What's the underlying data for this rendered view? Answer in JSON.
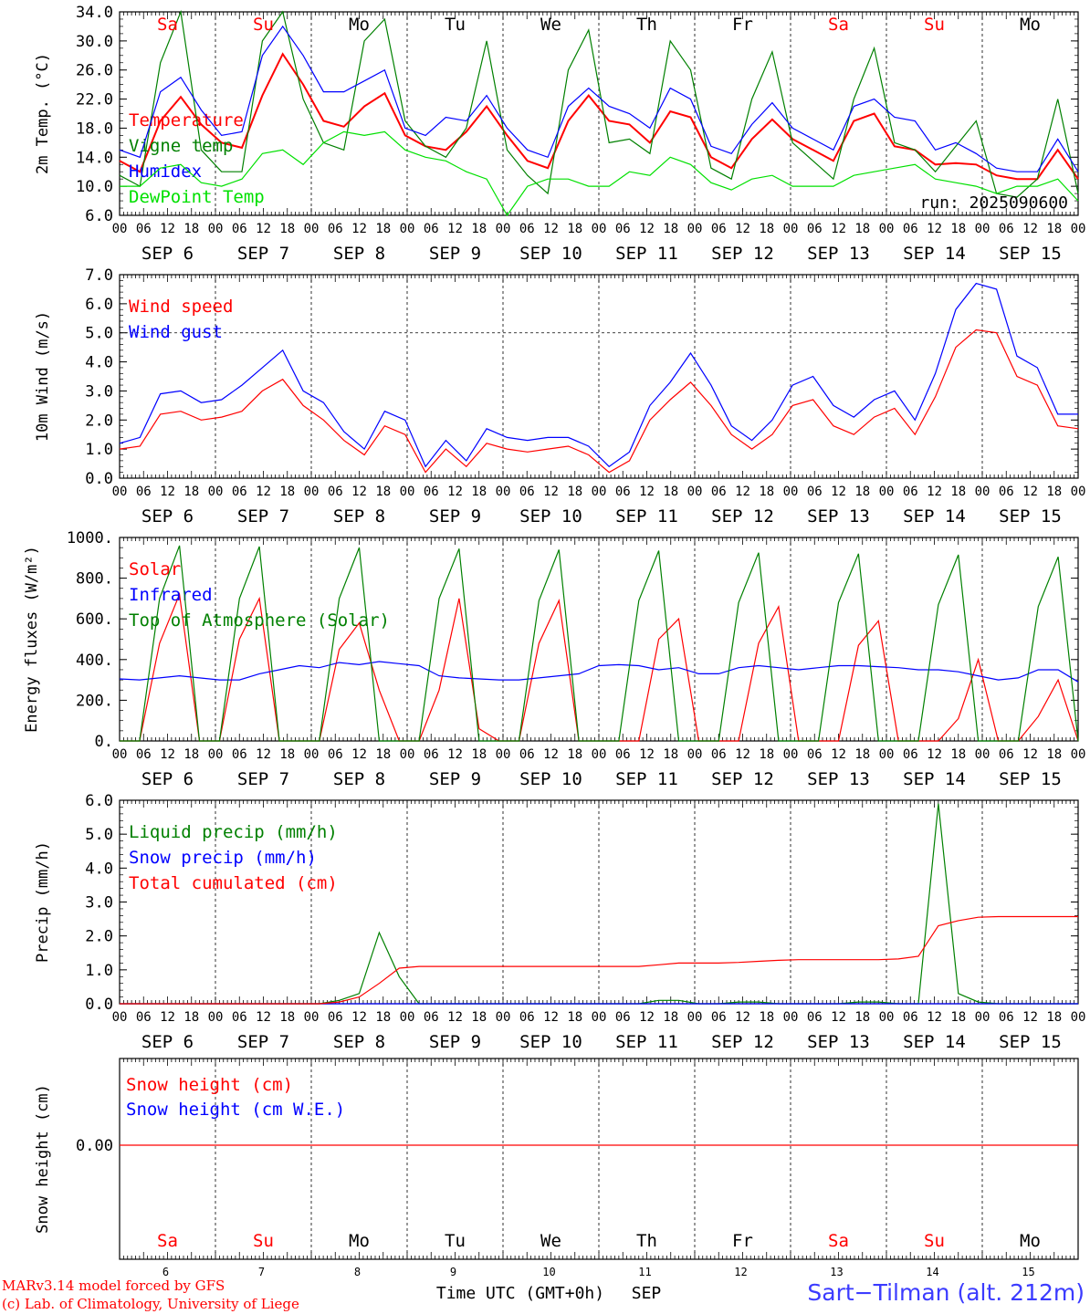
{
  "chart_data": [
    {
      "type": "line",
      "ylabel": "2m Temp. (°C)",
      "ylim": [
        6,
        34
      ],
      "yticks": [
        "6.0",
        "10.0",
        "14.0",
        "18.0",
        "22.0",
        "26.0",
        "30.0",
        "34.0"
      ],
      "x_start": "2025-09-06 00 UTC",
      "x_step_hours": 6,
      "weekdays": [
        "Sa",
        "Su",
        "Mo",
        "Tu",
        "We",
        "Th",
        "Fr",
        "Sa",
        "Su",
        "Mo"
      ],
      "annotation": "run: 2025090600",
      "series": [
        {
          "name": "Temperature",
          "color": "#ff0000",
          "values": [
            13.5,
            12.0,
            19.0,
            22.3,
            18.5,
            16.0,
            15.3,
            22.5,
            28.2,
            24.0,
            19.0,
            18.2,
            21.0,
            22.8,
            17.0,
            15.5,
            15.0,
            17.5,
            21.0,
            17.0,
            13.5,
            12.5,
            19.0,
            22.5,
            19.0,
            18.5,
            16.0,
            20.3,
            19.5,
            14.0,
            12.5,
            16.5,
            19.2,
            16.5,
            15.0,
            13.5,
            19.0,
            20.0,
            15.5,
            15.0,
            13.0,
            13.2,
            13.0,
            11.5,
            11.0,
            11.0,
            15.0,
            11.0
          ]
        },
        {
          "name": "Vigne temp",
          "color": "#008000",
          "values": [
            11.5,
            10.0,
            27.0,
            34.0,
            15.0,
            12.0,
            12.0,
            30.0,
            34.0,
            22.0,
            16.0,
            15.0,
            30.0,
            33.0,
            19.0,
            15.5,
            14.0,
            18.0,
            30.0,
            15.0,
            11.5,
            9.0,
            26.0,
            31.5,
            16.0,
            16.5,
            14.5,
            30.0,
            26.0,
            12.5,
            11.0,
            22.0,
            28.5,
            16.0,
            13.5,
            11.0,
            22.0,
            29.0,
            16.0,
            15.0,
            12.0,
            15.5,
            19.0,
            9.0,
            8.5,
            11.0,
            22.0,
            9.0
          ]
        },
        {
          "name": "Humidex",
          "color": "#0000ff",
          "values": [
            15.0,
            14.0,
            23.0,
            25.0,
            20.5,
            17.0,
            17.5,
            28.0,
            32.0,
            28.0,
            23.0,
            23.0,
            24.5,
            26.0,
            18.0,
            17.0,
            19.5,
            19.0,
            22.5,
            18.0,
            15.0,
            14.0,
            21.0,
            23.5,
            21.0,
            20.0,
            18.0,
            23.5,
            22.0,
            15.5,
            14.5,
            18.5,
            21.5,
            18.0,
            16.5,
            15.0,
            21.0,
            22.0,
            19.5,
            19.0,
            15.0,
            16.0,
            14.5,
            12.5,
            12.0,
            12.0,
            16.5,
            12.0
          ]
        },
        {
          "name": "DewPoint Temp",
          "color": "#00e000",
          "values": [
            10.0,
            10.0,
            12.5,
            13.0,
            10.5,
            10.0,
            11.0,
            14.5,
            15.0,
            13.0,
            16.0,
            17.5,
            17.0,
            17.5,
            15.0,
            14.0,
            13.5,
            12.0,
            11.0,
            6.0,
            10.0,
            11.0,
            11.0,
            10.0,
            10.0,
            12.0,
            11.5,
            14.0,
            13.0,
            10.5,
            9.5,
            11.0,
            11.5,
            10.0,
            10.0,
            10.0,
            11.5,
            12.0,
            12.5,
            13.0,
            11.0,
            10.5,
            10.0,
            9.0,
            10.0,
            10.0,
            11.0,
            8.0
          ]
        }
      ]
    },
    {
      "type": "line",
      "ylabel": "10m Wind (m/s)",
      "ylim": [
        0,
        7
      ],
      "yticks": [
        "0.0",
        "1.0",
        "2.0",
        "3.0",
        "4.0",
        "5.0",
        "6.0",
        "7.0"
      ],
      "reference_line": 5.0,
      "series": [
        {
          "name": "Wind speed",
          "color": "#ff0000",
          "values": [
            1.0,
            1.1,
            2.2,
            2.3,
            2.0,
            2.1,
            2.3,
            3.0,
            3.4,
            2.5,
            2.0,
            1.3,
            0.8,
            1.8,
            1.5,
            0.2,
            1.0,
            0.4,
            1.2,
            1.0,
            0.9,
            1.0,
            1.1,
            0.8,
            0.2,
            0.6,
            2.0,
            2.7,
            3.3,
            2.5,
            1.5,
            1.0,
            1.5,
            2.5,
            2.7,
            1.8,
            1.5,
            2.1,
            2.4,
            1.5,
            2.8,
            4.5,
            5.1,
            5.0,
            3.5,
            3.2,
            1.8,
            1.7
          ]
        },
        {
          "name": "Wind gust",
          "color": "#0000ff",
          "values": [
            1.2,
            1.4,
            2.9,
            3.0,
            2.6,
            2.7,
            3.2,
            3.8,
            4.4,
            3.0,
            2.6,
            1.6,
            1.0,
            2.3,
            2.0,
            0.4,
            1.3,
            0.6,
            1.7,
            1.4,
            1.3,
            1.4,
            1.4,
            1.1,
            0.4,
            0.9,
            2.5,
            3.3,
            4.3,
            3.2,
            1.8,
            1.3,
            2.0,
            3.2,
            3.5,
            2.5,
            2.1,
            2.7,
            3.0,
            2.0,
            3.6,
            5.8,
            6.7,
            6.5,
            4.2,
            3.8,
            2.2,
            2.2
          ]
        }
      ]
    },
    {
      "type": "line",
      "ylabel": "Energy fluxes (W/m²)",
      "ylim": [
        0,
        1000
      ],
      "yticks": [
        "0.",
        "200.",
        "400.",
        "600.",
        "800.",
        "1000."
      ],
      "series": [
        {
          "name": "Solar",
          "color": "#ff0000",
          "values": [
            0,
            0,
            480,
            720,
            0,
            0,
            500,
            700,
            0,
            0,
            0,
            450,
            580,
            250,
            0,
            0,
            250,
            700,
            60,
            0,
            0,
            480,
            690,
            0,
            0,
            0,
            0,
            500,
            600,
            0,
            0,
            0,
            480,
            660,
            0,
            0,
            0,
            470,
            590,
            0,
            0,
            0,
            110,
            400,
            0,
            0,
            120,
            300,
            0
          ]
        },
        {
          "name": "Infrared",
          "color": "#0000ff",
          "values": [
            305,
            300,
            310,
            320,
            310,
            300,
            300,
            330,
            350,
            370,
            360,
            385,
            375,
            390,
            380,
            370,
            320,
            310,
            305,
            300,
            300,
            310,
            320,
            330,
            370,
            375,
            370,
            350,
            360,
            330,
            330,
            360,
            370,
            360,
            350,
            360,
            370,
            370,
            365,
            360,
            350,
            350,
            340,
            320,
            300,
            310,
            350,
            350,
            290
          ]
        },
        {
          "name": "Top of Atmosphere (Solar)",
          "color": "#008000",
          "values": [
            0,
            0,
            700,
            960,
            0,
            0,
            700,
            955,
            0,
            0,
            0,
            700,
            950,
            0,
            0,
            0,
            700,
            945,
            0,
            0,
            0,
            690,
            940,
            0,
            0,
            0,
            690,
            935,
            0,
            0,
            0,
            680,
            925,
            0,
            0,
            0,
            680,
            920,
            0,
            0,
            0,
            670,
            915,
            0,
            0,
            0,
            660,
            905,
            0
          ]
        }
      ]
    },
    {
      "type": "line",
      "ylabel": "Precip (mm/h)",
      "ylim": [
        0,
        6
      ],
      "yticks": [
        "0.0",
        "1.0",
        "2.0",
        "3.0",
        "4.0",
        "5.0",
        "6.0"
      ],
      "series": [
        {
          "name": "Liquid precip (mm/h)",
          "color": "#008000",
          "values": [
            0,
            0,
            0,
            0,
            0,
            0,
            0,
            0,
            0,
            0,
            0,
            0.1,
            0.3,
            2.1,
            0.8,
            0,
            0,
            0,
            0,
            0,
            0,
            0,
            0,
            0,
            0,
            0,
            0,
            0.1,
            0.1,
            0,
            0,
            0.05,
            0.05,
            0,
            0,
            0,
            0,
            0.05,
            0.05,
            0,
            0,
            5.9,
            0.3,
            0.05,
            0,
            0,
            0,
            0,
            0
          ]
        },
        {
          "name": "Snow precip (mm/h)",
          "color": "#0000ff",
          "values": [
            0,
            0,
            0,
            0,
            0,
            0,
            0,
            0,
            0,
            0,
            0,
            0,
            0,
            0,
            0,
            0,
            0,
            0,
            0,
            0,
            0,
            0,
            0,
            0,
            0,
            0,
            0,
            0,
            0,
            0,
            0,
            0,
            0,
            0,
            0,
            0,
            0,
            0,
            0,
            0,
            0,
            0,
            0,
            0,
            0,
            0,
            0,
            0,
            0
          ]
        },
        {
          "name": "Total cumulated (cm)",
          "color": "#ff0000",
          "values": [
            0,
            0,
            0,
            0,
            0,
            0,
            0,
            0,
            0,
            0,
            0,
            0.05,
            0.2,
            0.6,
            1.05,
            1.1,
            1.1,
            1.1,
            1.1,
            1.1,
            1.1,
            1.1,
            1.1,
            1.1,
            1.1,
            1.1,
            1.1,
            1.15,
            1.2,
            1.2,
            1.2,
            1.22,
            1.25,
            1.28,
            1.3,
            1.3,
            1.3,
            1.3,
            1.3,
            1.32,
            1.4,
            2.3,
            2.45,
            2.55,
            2.57,
            2.57,
            2.57,
            2.57,
            2.57
          ]
        }
      ]
    },
    {
      "type": "line",
      "ylabel": "Snow height (cm)",
      "yticks": [
        "0.00"
      ],
      "series": [
        {
          "name": "Snow height (cm)",
          "color": "#ff0000",
          "values": [
            0,
            0,
            0,
            0,
            0,
            0,
            0,
            0,
            0,
            0,
            0,
            0,
            0,
            0,
            0,
            0,
            0,
            0,
            0,
            0,
            0,
            0,
            0,
            0,
            0,
            0,
            0,
            0,
            0,
            0,
            0,
            0,
            0,
            0,
            0,
            0,
            0,
            0,
            0,
            0,
            0,
            0,
            0,
            0,
            0,
            0,
            0,
            0,
            0
          ]
        },
        {
          "name": "Snow height (cm W.E.)",
          "color": "#0000ff",
          "values": [
            0,
            0,
            0,
            0,
            0,
            0,
            0,
            0,
            0,
            0,
            0,
            0,
            0,
            0,
            0,
            0,
            0,
            0,
            0,
            0,
            0,
            0,
            0,
            0,
            0,
            0,
            0,
            0,
            0,
            0,
            0,
            0,
            0,
            0,
            0,
            0,
            0,
            0,
            0,
            0,
            0,
            0,
            0,
            0,
            0,
            0,
            0,
            0,
            0
          ]
        }
      ]
    }
  ],
  "axis": {
    "hour_ticks": [
      "00",
      "06",
      "12",
      "18"
    ],
    "dates": [
      "SEP  6",
      "SEP  7",
      "SEP  8",
      "SEP  9",
      "SEP 10",
      "SEP 11",
      "SEP 12",
      "SEP 13",
      "SEP 14",
      "SEP 15"
    ],
    "day_numbers": [
      "6",
      "7",
      "8",
      "9",
      "10",
      "11",
      "12",
      "13",
      "14",
      "15"
    ],
    "weekend_color": "#ff0000",
    "weekday_color": "#000000",
    "weekend_days": [
      "Sa",
      "Su"
    ],
    "xlabel": "Time UTC (GMT+0h)",
    "month": "SEP"
  },
  "footer": {
    "credit_line1": "MARv3.14 model forced by GFS",
    "credit_line2": "(c) Lab. of Climatology, University of Liege",
    "station": "Sart−Tilman (alt. 212m)"
  }
}
